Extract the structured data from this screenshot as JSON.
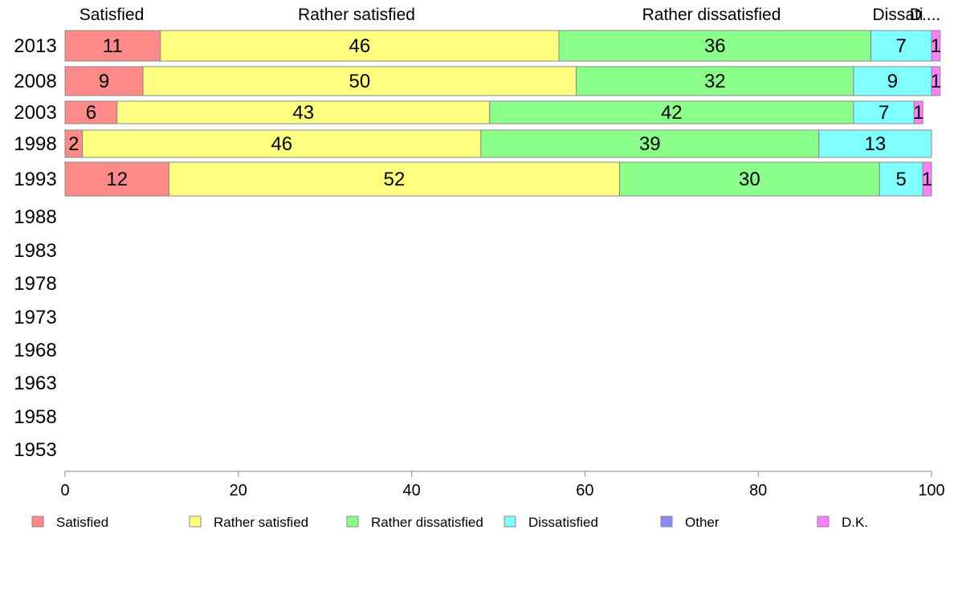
{
  "chart_data": {
    "type": "bar",
    "orientation": "horizontal",
    "stacked": true,
    "categories": [
      "2013",
      "2008",
      "2003",
      "1998",
      "1993",
      "1988",
      "1983",
      "1978",
      "1973",
      "1968",
      "1963",
      "1958",
      "1953"
    ],
    "series": [
      {
        "name": "Satisfied",
        "color": "#ff8a8a",
        "values": [
          11,
          9,
          6,
          2,
          12,
          null,
          null,
          null,
          null,
          null,
          null,
          null,
          null
        ]
      },
      {
        "name": "Rather satisfied",
        "color": "#ffff80",
        "values": [
          46,
          50,
          43,
          46,
          52,
          null,
          null,
          null,
          null,
          null,
          null,
          null,
          null
        ]
      },
      {
        "name": "Rather dissatisfied",
        "color": "#8aff8a",
        "values": [
          36,
          32,
          42,
          39,
          30,
          null,
          null,
          null,
          null,
          null,
          null,
          null,
          null
        ]
      },
      {
        "name": "Dissatisfied",
        "color": "#80ffff",
        "values": [
          7,
          9,
          7,
          13,
          5,
          null,
          null,
          null,
          null,
          null,
          null,
          null,
          null
        ]
      },
      {
        "name": "Other",
        "color": "#8a8aff",
        "values": [
          0,
          0,
          0,
          0,
          0,
          null,
          null,
          null,
          null,
          null,
          null,
          null,
          null
        ]
      },
      {
        "name": "D.K.",
        "color": "#ff80ff",
        "values": [
          1,
          1,
          1,
          0,
          1,
          null,
          null,
          null,
          null,
          null,
          null,
          null,
          null
        ]
      }
    ],
    "top_labels": [
      "Satisfied",
      "Rather satisfied",
      "Rather dissatisfied",
      "Dissati",
      "D...."
    ],
    "xlim": [
      0,
      100
    ],
    "xticks": [
      "0",
      "20",
      "40",
      "60",
      "80",
      "100"
    ],
    "grid": false,
    "legend_position": "bottom"
  }
}
